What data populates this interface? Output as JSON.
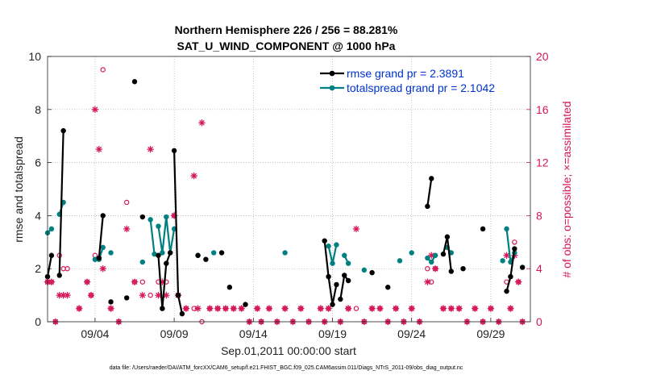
{
  "chart_data": {
    "type": "line",
    "title": "Northern Hemisphere 226 / 256 = 88.281%",
    "subtitle": "SAT_U_WIND_COMPONENT @ 1000 hPa",
    "xlabel": "Sep.01,2011 00:00:00 start",
    "ylabel_left": "rmse and totalspread",
    "ylabel_right": "# of obs: o=possible; ×=assimilated",
    "xlim": [
      1,
      31.5
    ],
    "ylim_left": [
      0,
      10
    ],
    "ylim_right": [
      0,
      20
    ],
    "x_ticks": [
      4,
      9,
      14,
      19,
      24,
      29
    ],
    "x_tick_labels": [
      "09/04",
      "09/09",
      "09/14",
      "09/19",
      "09/24",
      "09/29"
    ],
    "y_ticks_left": [
      0,
      2,
      4,
      6,
      8,
      10
    ],
    "y_ticks_right": [
      0,
      4,
      8,
      12,
      16,
      20
    ],
    "footer": "data file: /Users/raeder/DAI/ATM_forcXX/CAM6_setup/f.e21.FHIST_BGC.f09_025.CAM6assim.011/Diags_NTrS_2011-09/obs_diag_output.nc",
    "colors": {
      "rmse": "#000000",
      "spread": "#008080",
      "obs": "#d6165a",
      "right_axis": "#d6165a",
      "legend_text": "#0033cc"
    },
    "series": [
      {
        "name": "rmse grand pr = 2.3891",
        "color": "#000000",
        "segments": [
          [
            [
              1.0,
              1.7
            ],
            [
              1.25,
              2.5
            ]
          ],
          [
            [
              1.75,
              1.75
            ],
            [
              2.0,
              7.2
            ]
          ],
          [
            [
              4.25,
              2.4
            ],
            [
              4.5,
              4.0
            ]
          ],
          [
            [
              8.0,
              2.5
            ],
            [
              8.25,
              0.5
            ],
            [
              8.5,
              2.2
            ],
            [
              8.75,
              2.6
            ]
          ],
          [
            [
              9.0,
              6.45
            ],
            [
              9.25,
              1.0
            ],
            [
              9.5,
              0.3
            ]
          ],
          [
            [
              18.5,
              3.05
            ],
            [
              18.75,
              1.7
            ],
            [
              19.0,
              0.65
            ],
            [
              19.25,
              1.4
            ]
          ],
          [
            [
              19.5,
              0.85
            ],
            [
              19.75,
              1.75
            ],
            [
              20.0,
              1.55
            ]
          ],
          [
            [
              25.0,
              4.35
            ],
            [
              25.25,
              5.4
            ]
          ],
          [
            [
              26.0,
              2.55
            ],
            [
              26.25,
              3.2
            ],
            [
              26.5,
              1.9
            ]
          ],
          [
            [
              30.0,
              1.15
            ],
            [
              30.25,
              1.7
            ],
            [
              30.5,
              2.75
            ]
          ]
        ],
        "points": [
          [
            1.0,
            1.7
          ],
          [
            1.25,
            2.5
          ],
          [
            1.75,
            1.75
          ],
          [
            2.0,
            7.2
          ],
          [
            4.25,
            2.4
          ],
          [
            4.5,
            4.0
          ],
          [
            5.0,
            0.75
          ],
          [
            6.0,
            0.9
          ],
          [
            6.5,
            9.05
          ],
          [
            7.0,
            3.95
          ],
          [
            8.0,
            2.5
          ],
          [
            8.25,
            0.5
          ],
          [
            8.5,
            2.2
          ],
          [
            8.75,
            2.6
          ],
          [
            9.0,
            6.45
          ],
          [
            9.25,
            1.0
          ],
          [
            9.5,
            0.3
          ],
          [
            10.5,
            2.5
          ],
          [
            11.0,
            2.35
          ],
          [
            12.0,
            2.6
          ],
          [
            12.5,
            1.3
          ],
          [
            13.5,
            0.65
          ],
          [
            18.5,
            3.05
          ],
          [
            18.75,
            1.7
          ],
          [
            19.0,
            0.65
          ],
          [
            19.25,
            1.4
          ],
          [
            19.5,
            0.85
          ],
          [
            19.75,
            1.75
          ],
          [
            20.0,
            1.55
          ],
          [
            21.5,
            1.85
          ],
          [
            22.5,
            1.3
          ],
          [
            25.0,
            4.35
          ],
          [
            25.25,
            5.4
          ],
          [
            26.0,
            2.55
          ],
          [
            26.25,
            3.2
          ],
          [
            26.5,
            1.9
          ],
          [
            27.25,
            2.0
          ],
          [
            28.5,
            3.5
          ],
          [
            30.0,
            1.15
          ],
          [
            30.25,
            1.7
          ],
          [
            30.5,
            2.75
          ],
          [
            31.0,
            2.05
          ]
        ]
      },
      {
        "name": "totalspread grand pr = 2.1042",
        "color": "#008080",
        "segments": [
          [
            [
              1.0,
              3.35
            ],
            [
              1.25,
              3.5
            ]
          ],
          [
            [
              1.75,
              4.05
            ],
            [
              2.0,
              4.5
            ]
          ],
          [
            [
              4.0,
              2.35
            ],
            [
              4.25,
              2.35
            ],
            [
              4.5,
              2.8
            ]
          ],
          [
            [
              7.5,
              3.85
            ],
            [
              7.75,
              2.55
            ]
          ],
          [
            [
              8.0,
              3.6
            ],
            [
              8.25,
              2.6
            ],
            [
              8.5,
              3.95
            ],
            [
              8.75,
              2.6
            ],
            [
              9.0,
              3.5
            ]
          ],
          [
            [
              18.75,
              2.85
            ],
            [
              19.0,
              2.2
            ],
            [
              19.25,
              2.9
            ]
          ],
          [
            [
              19.75,
              2.5
            ],
            [
              20.0,
              2.2
            ]
          ],
          [
            [
              25.0,
              2.4
            ],
            [
              25.25,
              2.25
            ],
            [
              25.5,
              2.5
            ]
          ],
          [
            [
              26.25,
              2.8
            ],
            [
              26.5,
              2.6
            ]
          ],
          [
            [
              30.0,
              3.5
            ],
            [
              30.25,
              2.25
            ],
            [
              30.5,
              2.6
            ]
          ]
        ],
        "points": [
          [
            1.0,
            3.35
          ],
          [
            1.25,
            3.5
          ],
          [
            1.75,
            4.05
          ],
          [
            2.0,
            4.5
          ],
          [
            4.0,
            2.35
          ],
          [
            4.25,
            2.35
          ],
          [
            4.5,
            2.8
          ],
          [
            5.0,
            2.6
          ],
          [
            7.0,
            2.25
          ],
          [
            7.5,
            3.85
          ],
          [
            7.75,
            2.55
          ],
          [
            8.0,
            3.6
          ],
          [
            8.25,
            2.6
          ],
          [
            8.5,
            3.95
          ],
          [
            8.75,
            2.6
          ],
          [
            9.0,
            3.5
          ],
          [
            10.5,
            2.5
          ],
          [
            11.5,
            2.6
          ],
          [
            16.0,
            2.6
          ],
          [
            18.75,
            2.85
          ],
          [
            19.0,
            2.2
          ],
          [
            19.25,
            2.9
          ],
          [
            19.75,
            2.5
          ],
          [
            20.0,
            2.2
          ],
          [
            21.0,
            1.95
          ],
          [
            23.25,
            2.3
          ],
          [
            24.0,
            2.6
          ],
          [
            25.0,
            2.4
          ],
          [
            25.25,
            2.25
          ],
          [
            25.5,
            2.5
          ],
          [
            26.25,
            2.8
          ],
          [
            26.5,
            2.6
          ],
          [
            29.75,
            2.3
          ],
          [
            30.0,
            3.5
          ],
          [
            30.25,
            2.25
          ],
          [
            30.5,
            2.6
          ]
        ]
      }
    ],
    "obs_possible": [
      [
        1.0,
        3
      ],
      [
        1.25,
        3
      ],
      [
        1.5,
        0
      ],
      [
        1.75,
        5
      ],
      [
        2.0,
        4
      ],
      [
        2.25,
        4
      ],
      [
        3.0,
        1
      ],
      [
        3.5,
        3
      ],
      [
        3.75,
        2
      ],
      [
        4.0,
        5
      ],
      [
        4.5,
        19
      ],
      [
        5.0,
        1
      ],
      [
        5.5,
        0
      ],
      [
        6.0,
        9
      ],
      [
        6.5,
        3
      ],
      [
        7.0,
        3
      ],
      [
        7.5,
        2
      ],
      [
        8.0,
        3
      ],
      [
        8.25,
        1
      ],
      [
        8.5,
        3
      ],
      [
        9.0,
        8
      ],
      [
        9.25,
        2
      ],
      [
        9.75,
        1
      ],
      [
        10.25,
        1
      ],
      [
        10.75,
        0
      ],
      [
        11.25,
        1
      ],
      [
        11.75,
        1
      ],
      [
        12.25,
        1
      ],
      [
        12.75,
        1
      ],
      [
        13.25,
        1
      ],
      [
        13.75,
        0
      ],
      [
        14.25,
        1
      ],
      [
        14.5,
        0
      ],
      [
        15.0,
        1
      ],
      [
        15.5,
        0
      ],
      [
        16.0,
        1
      ],
      [
        16.5,
        0
      ],
      [
        17.0,
        1
      ],
      [
        17.5,
        0
      ],
      [
        18.25,
        1
      ],
      [
        18.5,
        0
      ],
      [
        18.75,
        1
      ],
      [
        19.5,
        0
      ],
      [
        20.0,
        1
      ],
      [
        20.5,
        1
      ],
      [
        21.0,
        0
      ],
      [
        21.5,
        1
      ],
      [
        22.0,
        1
      ],
      [
        22.5,
        0
      ],
      [
        23.0,
        1
      ],
      [
        23.5,
        0
      ],
      [
        24.0,
        1
      ],
      [
        24.5,
        0
      ],
      [
        25.0,
        4
      ],
      [
        25.25,
        3
      ],
      [
        25.5,
        4
      ],
      [
        26.0,
        1
      ],
      [
        26.5,
        1
      ],
      [
        27.0,
        1
      ],
      [
        27.5,
        0
      ],
      [
        28.0,
        1
      ],
      [
        28.5,
        0
      ],
      [
        29.0,
        1
      ],
      [
        29.5,
        0
      ],
      [
        30.0,
        3
      ],
      [
        30.25,
        1
      ],
      [
        30.5,
        6
      ],
      [
        30.75,
        3
      ],
      [
        31.0,
        0
      ]
    ],
    "obs_assimilated": [
      [
        1.0,
        3
      ],
      [
        1.25,
        3
      ],
      [
        1.5,
        0
      ],
      [
        1.75,
        2
      ],
      [
        2.0,
        2
      ],
      [
        2.25,
        2
      ],
      [
        3.0,
        1
      ],
      [
        3.5,
        3
      ],
      [
        3.75,
        2
      ],
      [
        4.0,
        16
      ],
      [
        4.25,
        13
      ],
      [
        4.5,
        4
      ],
      [
        5.0,
        1
      ],
      [
        5.5,
        0
      ],
      [
        6.0,
        7
      ],
      [
        6.5,
        3
      ],
      [
        7.0,
        2
      ],
      [
        7.5,
        13
      ],
      [
        8.0,
        2
      ],
      [
        8.25,
        3
      ],
      [
        8.5,
        2
      ],
      [
        9.0,
        8
      ],
      [
        9.25,
        2
      ],
      [
        9.75,
        1
      ],
      [
        10.25,
        11
      ],
      [
        10.5,
        1
      ],
      [
        10.75,
        15
      ],
      [
        11.25,
        1
      ],
      [
        11.75,
        1
      ],
      [
        12.25,
        1
      ],
      [
        12.75,
        1
      ],
      [
        13.25,
        1
      ],
      [
        13.75,
        0
      ],
      [
        14.25,
        1
      ],
      [
        14.5,
        0
      ],
      [
        15.0,
        1
      ],
      [
        15.5,
        0
      ],
      [
        16.0,
        1
      ],
      [
        16.5,
        0
      ],
      [
        17.0,
        1
      ],
      [
        17.5,
        0
      ],
      [
        18.25,
        1
      ],
      [
        18.5,
        0
      ],
      [
        18.75,
        1
      ],
      [
        19.5,
        0
      ],
      [
        20.0,
        1
      ],
      [
        20.5,
        7
      ],
      [
        21.0,
        0
      ],
      [
        21.5,
        1
      ],
      [
        22.0,
        1
      ],
      [
        22.5,
        0
      ],
      [
        23.0,
        1
      ],
      [
        23.5,
        0
      ],
      [
        24.0,
        1
      ],
      [
        24.5,
        0
      ],
      [
        25.0,
        3
      ],
      [
        25.25,
        5
      ],
      [
        25.5,
        4
      ],
      [
        26.0,
        1
      ],
      [
        26.5,
        1
      ],
      [
        27.0,
        1
      ],
      [
        27.5,
        0
      ],
      [
        28.0,
        1
      ],
      [
        28.5,
        0
      ],
      [
        29.0,
        1
      ],
      [
        29.5,
        0
      ],
      [
        30.0,
        5
      ],
      [
        30.25,
        1
      ],
      [
        30.5,
        5
      ],
      [
        30.75,
        3
      ],
      [
        31.0,
        0
      ]
    ]
  }
}
